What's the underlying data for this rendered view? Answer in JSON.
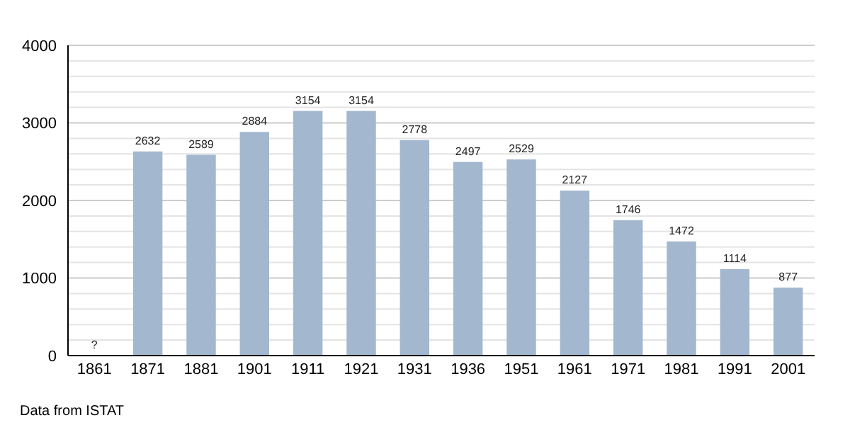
{
  "chart_data": {
    "type": "bar",
    "categories": [
      "1861",
      "1871",
      "1881",
      "1901",
      "1911",
      "1921",
      "1931",
      "1936",
      "1951",
      "1961",
      "1971",
      "1981",
      "1991",
      "2001"
    ],
    "values": [
      null,
      2632,
      2589,
      2884,
      3154,
      3154,
      2778,
      2497,
      2529,
      2127,
      1746,
      1472,
      1114,
      877
    ],
    "value_labels": [
      "?",
      "2632",
      "2589",
      "2884",
      "3154",
      "3154",
      "2778",
      "2497",
      "2529",
      "2127",
      "1746",
      "1472",
      "1114",
      "877"
    ],
    "color": "#a3b8cf",
    "ylim": [
      0,
      4000
    ],
    "yticks": [
      0,
      {
        "value": 200,
        "label": null
      },
      {
        "value": 400,
        "label": null
      },
      {
        "value": 600,
        "label": null
      },
      {
        "value": 800,
        "label": null
      },
      1000,
      {
        "value": 1200,
        "label": null
      },
      {
        "value": 1400,
        "label": null
      },
      {
        "value": 1600,
        "label": null
      },
      {
        "value": 1800,
        "label": null
      },
      2000,
      {
        "value": 2200,
        "label": null
      },
      {
        "value": 2400,
        "label": null
      },
      {
        "value": 2600,
        "label": null
      },
      {
        "value": 2800,
        "label": null
      },
      3000,
      {
        "value": 3200,
        "label": null
      },
      {
        "value": 3400,
        "label": null
      },
      {
        "value": 3600,
        "label": null
      },
      {
        "value": 3800,
        "label": null
      },
      4000
    ],
    "grid": "y",
    "annotations": [
      "Data from ISTAT"
    ]
  }
}
